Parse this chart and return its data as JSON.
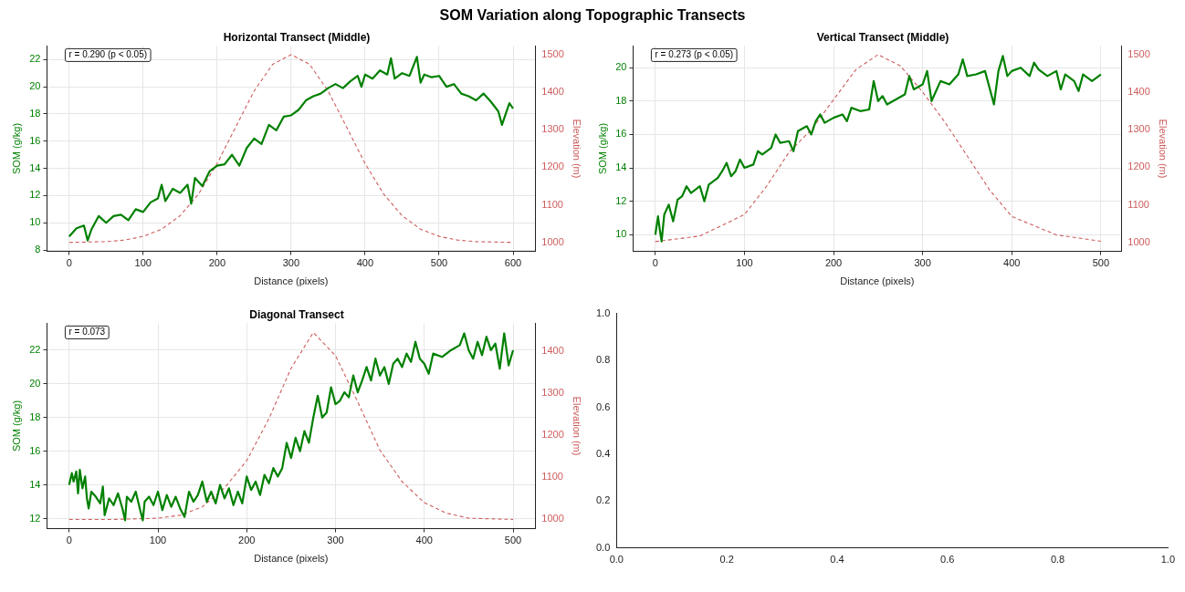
{
  "chart_data": [
    {
      "type": "line",
      "title": "SOM Variation along Topographic Transects",
      "subtitle": "Horizontal Transect (Middle)",
      "xlabel": "Distance (pixels)",
      "ylabel": "SOM (g/kg)",
      "y2label": "Elevation (m)",
      "xlim": [
        -30,
        630
      ],
      "xticks": [
        0,
        100,
        200,
        300,
        400,
        500,
        600
      ],
      "ylim": [
        7.9,
        23.0
      ],
      "yticks": [
        8,
        10,
        12,
        14,
        16,
        18,
        20,
        22
      ],
      "y2lim": [
        976,
        1523
      ],
      "y2ticks": [
        1000,
        1100,
        1200,
        1300,
        1400,
        1500
      ],
      "grid": true,
      "annotations": [
        "r = 0.290 (p < 0.05)"
      ],
      "series": [
        {
          "color": "#008000",
          "x": [
            0,
            10,
            20,
            25,
            30,
            40,
            50,
            60,
            70,
            80,
            90,
            100,
            110,
            120,
            125,
            130,
            140,
            150,
            160,
            165,
            170,
            180,
            190,
            200,
            210,
            220,
            230,
            240,
            250,
            260,
            270,
            280,
            290,
            300,
            310,
            320,
            330,
            340,
            350,
            360,
            370,
            380,
            390,
            395,
            400,
            410,
            420,
            430,
            435,
            440,
            450,
            460,
            470,
            475,
            480,
            490,
            500,
            510,
            520,
            530,
            540,
            550,
            560,
            570,
            580,
            585,
            590,
            595,
            600
          ],
          "values": [
            9.0,
            9.6,
            9.8,
            8.7,
            9.5,
            10.5,
            10.0,
            10.5,
            10.6,
            10.2,
            11.0,
            10.8,
            11.5,
            11.8,
            12.8,
            11.6,
            12.5,
            12.2,
            12.8,
            11.4,
            13.3,
            12.7,
            13.8,
            14.2,
            14.3,
            15.0,
            14.2,
            15.5,
            16.2,
            15.8,
            17.2,
            16.8,
            17.8,
            17.9,
            18.3,
            19.0,
            19.3,
            19.5,
            19.9,
            20.2,
            19.9,
            20.4,
            20.8,
            20.0,
            20.9,
            20.6,
            21.2,
            20.9,
            22.1,
            20.6,
            21.0,
            20.8,
            22.2,
            20.3,
            20.9,
            20.7,
            20.8,
            20.0,
            20.2,
            19.5,
            19.3,
            19.0,
            19.5,
            18.9,
            18.2,
            17.2,
            18.0,
            18.8,
            18.4
          ]
        },
        {
          "color": "#cd5c5c",
          "axis": "y2",
          "line_style": "dashed",
          "x": [
            0,
            50,
            75,
            100,
            125,
            150,
            175,
            200,
            225,
            250,
            275,
            300,
            325,
            350,
            375,
            400,
            425,
            450,
            475,
            500,
            525,
            550,
            600
          ],
          "values": [
            1000,
            1002,
            1006,
            1016,
            1035,
            1071,
            1129,
            1210,
            1307,
            1403,
            1474,
            1500,
            1474,
            1403,
            1307,
            1210,
            1129,
            1071,
            1035,
            1016,
            1006,
            1002,
            1000
          ]
        }
      ]
    },
    {
      "type": "line",
      "title": "Vertical Transect (Middle)",
      "xlabel": "Distance (pixels)",
      "ylabel": "SOM (g/kg)",
      "y2label": "Elevation (m)",
      "xlim": [
        -25,
        523
      ],
      "xticks": [
        0,
        100,
        200,
        300,
        400,
        500
      ],
      "ylim": [
        9.0,
        21.3
      ],
      "yticks": [
        10,
        12,
        14,
        16,
        18,
        20
      ],
      "y2lim": [
        976,
        1523
      ],
      "y2ticks": [
        1000,
        1100,
        1200,
        1300,
        1400,
        1500
      ],
      "grid": true,
      "annotations": [
        "r = 0.273 (p < 0.05)"
      ],
      "series": [
        {
          "color": "#008000",
          "x": [
            0,
            3,
            5,
            7,
            10,
            15,
            20,
            25,
            30,
            35,
            40,
            50,
            55,
            60,
            70,
            75,
            80,
            85,
            90,
            95,
            100,
            110,
            115,
            120,
            130,
            135,
            140,
            150,
            155,
            160,
            170,
            175,
            180,
            185,
            190,
            200,
            210,
            215,
            220,
            230,
            240,
            245,
            250,
            255,
            260,
            270,
            280,
            285,
            290,
            300,
            305,
            310,
            320,
            330,
            340,
            345,
            350,
            360,
            370,
            380,
            385,
            390,
            395,
            400,
            410,
            420,
            425,
            430,
            440,
            450,
            455,
            460,
            470,
            475,
            480,
            490,
            500
          ],
          "values": [
            10.0,
            11.1,
            10.3,
            9.6,
            11.2,
            11.8,
            10.8,
            12.1,
            12.3,
            12.9,
            12.5,
            12.9,
            12.0,
            13.0,
            13.4,
            13.8,
            14.3,
            13.5,
            13.8,
            14.5,
            14.0,
            14.2,
            15.0,
            14.8,
            15.2,
            16.0,
            15.5,
            15.6,
            15.0,
            16.2,
            16.5,
            16.0,
            16.8,
            17.2,
            16.7,
            17.0,
            17.2,
            16.8,
            17.6,
            17.4,
            17.5,
            19.2,
            18.0,
            18.3,
            17.8,
            18.1,
            18.4,
            19.5,
            18.7,
            19.0,
            19.8,
            18.0,
            19.2,
            19.0,
            19.6,
            20.5,
            19.5,
            19.6,
            19.8,
            17.8,
            19.8,
            20.7,
            19.5,
            19.8,
            20.0,
            19.5,
            20.3,
            19.9,
            19.5,
            19.8,
            18.7,
            19.6,
            19.2,
            18.6,
            19.6,
            19.2,
            19.6
          ]
        },
        {
          "color": "#cd5c5c",
          "axis": "y2",
          "line_style": "dashed",
          "x": [
            0,
            50,
            100,
            125,
            150,
            175,
            200,
            225,
            250,
            275,
            300,
            325,
            350,
            375,
            400,
            450,
            500
          ],
          "values": [
            1002,
            1017,
            1074,
            1150,
            1240,
            1300,
            1380,
            1460,
            1500,
            1470,
            1400,
            1320,
            1230,
            1140,
            1069,
            1020,
            1003
          ]
        }
      ]
    },
    {
      "type": "line",
      "title": "Diagonal Transect",
      "xlabel": "Distance (pixels)",
      "ylabel": "SOM (g/kg)",
      "y2label": "Elevation (m)",
      "xlim": [
        -25,
        525
      ],
      "xticks": [
        0,
        100,
        200,
        300,
        400,
        500
      ],
      "ylim": [
        11.4,
        23.6
      ],
      "yticks": [
        12,
        14,
        16,
        18,
        20,
        22
      ],
      "y2lim": [
        978,
        1467
      ],
      "y2ticks": [
        1000,
        1100,
        1200,
        1300,
        1400
      ],
      "grid": true,
      "annotations": [
        "r = 0.073"
      ],
      "series": [
        {
          "color": "#008000",
          "x": [
            0,
            3,
            5,
            8,
            10,
            12,
            15,
            18,
            20,
            22,
            25,
            30,
            35,
            38,
            40,
            45,
            50,
            55,
            60,
            63,
            65,
            70,
            75,
            80,
            83,
            85,
            90,
            95,
            100,
            105,
            110,
            115,
            120,
            125,
            130,
            135,
            140,
            145,
            150,
            155,
            160,
            165,
            170,
            175,
            180,
            185,
            190,
            195,
            200,
            205,
            210,
            215,
            220,
            225,
            230,
            235,
            240,
            245,
            250,
            255,
            260,
            265,
            270,
            275,
            280,
            285,
            290,
            295,
            300,
            305,
            310,
            315,
            320,
            325,
            330,
            335,
            340,
            345,
            350,
            355,
            360,
            365,
            370,
            375,
            380,
            385,
            390,
            395,
            400,
            405,
            410,
            420,
            430,
            440,
            445,
            450,
            455,
            460,
            465,
            470,
            475,
            480,
            485,
            490,
            495,
            500
          ],
          "values": [
            14.0,
            14.7,
            14.2,
            14.8,
            13.5,
            14.9,
            13.8,
            14.5,
            13.2,
            12.6,
            13.6,
            13.3,
            12.9,
            13.9,
            12.2,
            13.2,
            12.8,
            13.5,
            12.6,
            11.9,
            13.3,
            13.0,
            13.6,
            12.5,
            11.9,
            13.0,
            13.3,
            12.8,
            13.6,
            12.5,
            13.4,
            12.7,
            13.3,
            12.6,
            12.1,
            13.6,
            13.0,
            13.4,
            14.2,
            13.0,
            13.6,
            12.9,
            14.0,
            13.2,
            13.8,
            12.8,
            13.6,
            12.9,
            14.5,
            13.7,
            14.2,
            13.4,
            14.6,
            14.1,
            15.0,
            14.5,
            15.0,
            16.5,
            15.6,
            16.8,
            16.0,
            17.2,
            16.5,
            18.0,
            19.3,
            18.0,
            18.3,
            19.8,
            18.8,
            19.0,
            19.5,
            19.2,
            20.5,
            19.5,
            20.2,
            21.0,
            20.2,
            21.5,
            20.5,
            21.0,
            20.0,
            21.2,
            21.5,
            21.0,
            21.8,
            21.3,
            22.5,
            21.5,
            21.2,
            20.6,
            21.8,
            21.6,
            22.0,
            22.3,
            23.0,
            22.0,
            21.5,
            22.5,
            21.7,
            22.8,
            22.0,
            22.4,
            20.9,
            23.0,
            21.1,
            22.0
          ]
        },
        {
          "color": "#cd5c5c",
          "axis": "y2",
          "line_style": "dashed",
          "x": [
            0,
            50,
            100,
            125,
            150,
            175,
            200,
            225,
            250,
            275,
            300,
            325,
            350,
            375,
            400,
            425,
            450,
            500
          ],
          "values": [
            1000,
            1000,
            1003,
            1010,
            1030,
            1075,
            1140,
            1240,
            1360,
            1445,
            1390,
            1280,
            1165,
            1090,
            1040,
            1015,
            1003,
            1000
          ]
        }
      ]
    },
    {
      "type": "line",
      "xlim": [
        0,
        1
      ],
      "xticks": [
        {
          "value": 0,
          "label": "0.0"
        },
        {
          "value": 0.2,
          "label": "0.2"
        },
        {
          "value": 0.4,
          "label": "0.4"
        },
        {
          "value": 0.6,
          "label": "0.6"
        },
        {
          "value": 0.8,
          "label": "0.8"
        },
        {
          "value": 1,
          "label": "1.0"
        }
      ],
      "ylim": [
        0,
        1
      ],
      "yticks": [
        {
          "value": 0,
          "label": "0.0"
        },
        {
          "value": 0.2,
          "label": "0.2"
        },
        {
          "value": 0.4,
          "label": "0.4"
        },
        {
          "value": 0.6,
          "label": "0.6"
        },
        {
          "value": 0.8,
          "label": "0.8"
        },
        {
          "value": 1,
          "label": "1.0"
        }
      ]
    }
  ]
}
